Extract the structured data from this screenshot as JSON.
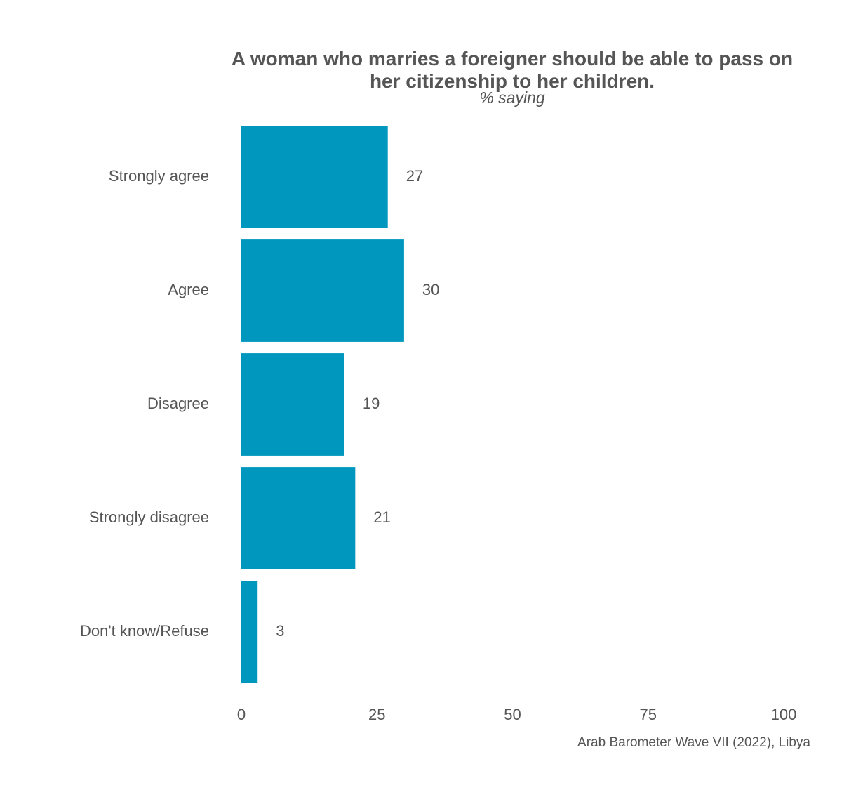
{
  "chart_data": {
    "type": "hbar",
    "title": "A woman who marries a foreigner should be able to pass on her citizenship to her children.",
    "subtitle": "% saying",
    "caption": "Arab Barometer Wave VII (2022), Libya",
    "categories": [
      "Strongly agree",
      "Agree",
      "Disagree",
      "Strongly disagree",
      "Don't know/Refuse"
    ],
    "values": [
      27,
      30,
      19,
      21,
      3
    ],
    "color": "#0097bf",
    "xlim": [
      0,
      100
    ],
    "xticks": [
      0,
      25,
      50,
      75,
      100
    ],
    "grid": false
  }
}
